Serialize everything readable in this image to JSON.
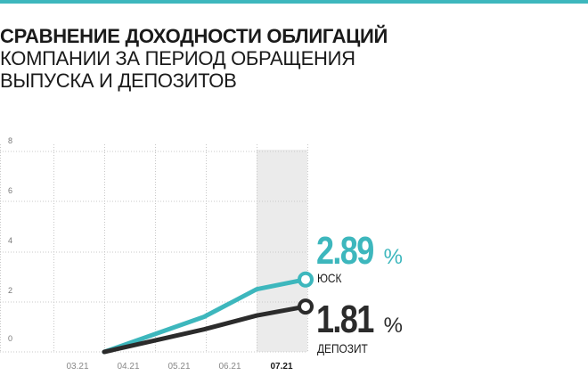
{
  "title": {
    "line1": "СРАВНЕНИЕ ДОХОДНОСТИ ОБЛИГАЦИЙ",
    "line2": "КОМПАНИИ ЗА ПЕРИОД ОБРАЩЕНИЯ",
    "line3": "ВЫПУСКА И ДЕПОЗИТОВ"
  },
  "colors": {
    "accent": "#3db7bd",
    "deposit": "#2b2b2b",
    "highlight_band": "#ebebeb",
    "grid": "#c8c8c8"
  },
  "chart_data": {
    "type": "line",
    "categories": [
      "03.21",
      "04.21",
      "05.21",
      "06.21",
      "07.21"
    ],
    "highlighted_category": "07.21",
    "ylim": [
      0,
      8
    ],
    "yticks": [
      "8",
      "6",
      "4",
      "2",
      "0"
    ],
    "grid": true,
    "series": [
      {
        "name": "ЮСК",
        "color": "#3db7bd",
        "x": [
          "04.21",
          "05.21",
          "06.21",
          "07.21"
        ],
        "values": [
          0.0,
          1.4,
          2.5,
          2.89
        ],
        "end_label": {
          "value": "2.89",
          "unit": "%"
        }
      },
      {
        "name": "ДЕПОЗИТ",
        "color": "#2b2b2b",
        "x": [
          "04.21",
          "05.21",
          "06.21",
          "07.21"
        ],
        "values": [
          0.0,
          0.9,
          1.45,
          1.81
        ],
        "end_label": {
          "value": "1.81",
          "unit": "%"
        }
      }
    ]
  }
}
